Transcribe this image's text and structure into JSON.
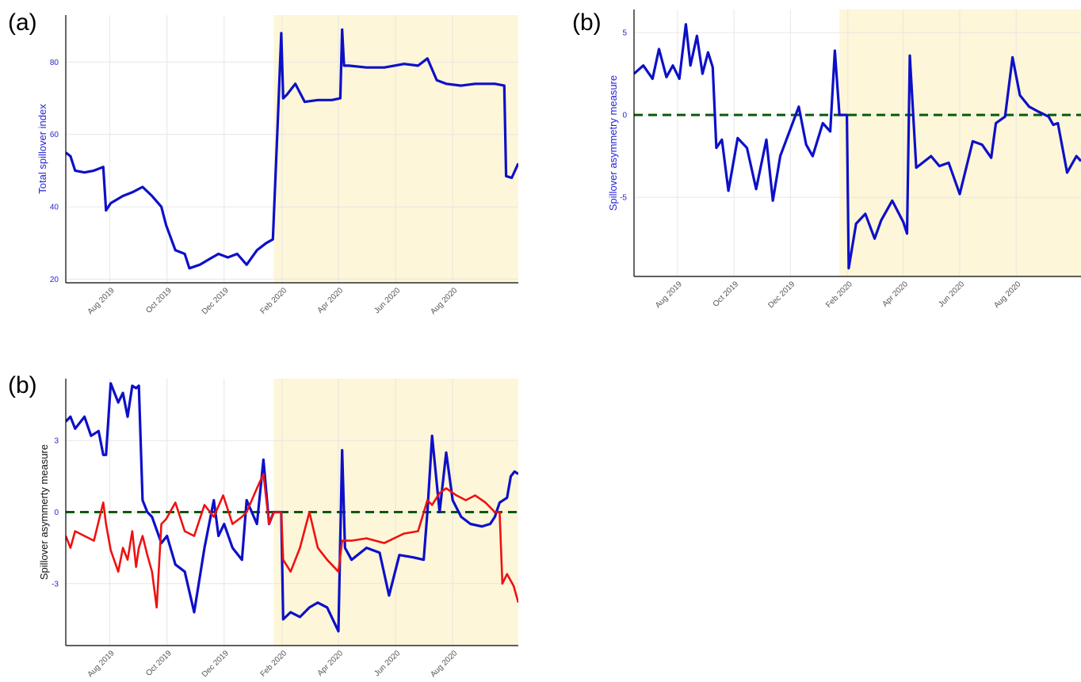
{
  "colors": {
    "shade": "#fdf6d8",
    "grid": "#e6e6e6",
    "axis": "#000000",
    "blue": "#0d10c8",
    "red": "#ee1111",
    "zero_line": "#0b5a0b",
    "blue_tick_text": "#2424d6",
    "x_tick_text": "#555555",
    "y_label_black": "#111111"
  },
  "chart_data": [
    {
      "panel_label": "(a)",
      "type": "line",
      "ylabel": "Total spillover index",
      "ylim": [
        19,
        93
      ],
      "yticks": [
        20,
        40,
        60,
        80
      ],
      "y_label_color": "blue",
      "xlim": [
        "2019-06-15",
        "2020-10-10"
      ],
      "x_ticks": [
        "Aug 2019",
        "Oct 2019",
        "Dec 2019",
        "Feb 2020",
        "Apr 2020",
        "Jun 2020",
        "Aug 2020"
      ],
      "shaded_x_start": "2020-01-23",
      "reference_line": null,
      "series": [
        {
          "color": "blue",
          "x": [
            "2019-06-15",
            "2019-06-20",
            "2019-06-25",
            "2019-07-05",
            "2019-07-15",
            "2019-07-25",
            "2019-07-28",
            "2019-08-02",
            "2019-08-15",
            "2019-08-25",
            "2019-09-05",
            "2019-09-15",
            "2019-09-25",
            "2019-09-30",
            "2019-10-10",
            "2019-10-20",
            "2019-10-25",
            "2019-11-05",
            "2019-11-15",
            "2019-11-25",
            "2019-12-05",
            "2019-12-15",
            "2019-12-25",
            "2020-01-05",
            "2020-01-15",
            "2020-01-22",
            "2020-01-27",
            "2020-01-31",
            "2020-02-02",
            "2020-02-06",
            "2020-02-15",
            "2020-02-25",
            "2020-03-10",
            "2020-03-25",
            "2020-04-03",
            "2020-04-05",
            "2020-04-07",
            "2020-04-12",
            "2020-05-01",
            "2020-05-20",
            "2020-06-10",
            "2020-06-25",
            "2020-07-05",
            "2020-07-15",
            "2020-07-25",
            "2020-08-10",
            "2020-08-25",
            "2020-09-15",
            "2020-09-25",
            "2020-09-27",
            "2020-10-03",
            "2020-10-10"
          ],
          "y": [
            55,
            54,
            50,
            49.5,
            50,
            51,
            39,
            41,
            43,
            44,
            45.5,
            43,
            40,
            35,
            28,
            27,
            23,
            24,
            25.5,
            27,
            26,
            27,
            24,
            28,
            30,
            31,
            62,
            88,
            70,
            71,
            74,
            69,
            69.5,
            69.5,
            70,
            89,
            79,
            79,
            78.5,
            78.5,
            79.5,
            79,
            81,
            75,
            74,
            73.5,
            74,
            74,
            73.5,
            48.5,
            48,
            52
          ]
        }
      ]
    },
    {
      "panel_label": "(b)",
      "type": "line",
      "ylabel": "Spillover asymmetry measure",
      "ylim": [
        -9.8,
        6.4
      ],
      "yticks": [
        -5,
        0,
        5
      ],
      "y_label_color": "blue",
      "xlim": [
        "2019-06-15",
        "2020-10-10"
      ],
      "x_ticks": [
        "Aug 2019",
        "Oct 2019",
        "Dec 2019",
        "Feb 2020",
        "Apr 2020",
        "Jun 2020",
        "Aug 2020"
      ],
      "shaded_x_start": "2020-01-23",
      "reference_line": 0,
      "series": [
        {
          "color": "blue",
          "x": [
            "2019-06-15",
            "2019-06-25",
            "2019-07-05",
            "2019-07-12",
            "2019-07-20",
            "2019-07-27",
            "2019-08-03",
            "2019-08-10",
            "2019-08-15",
            "2019-08-22",
            "2019-08-28",
            "2019-09-03",
            "2019-09-08",
            "2019-09-12",
            "2019-09-18",
            "2019-09-25",
            "2019-10-05",
            "2019-10-15",
            "2019-10-25",
            "2019-11-05",
            "2019-11-12",
            "2019-11-20",
            "2019-11-30",
            "2019-12-10",
            "2019-12-18",
            "2019-12-25",
            "2020-01-05",
            "2020-01-13",
            "2020-01-18",
            "2020-01-23",
            "2020-01-31",
            "2020-02-02",
            "2020-02-10",
            "2020-02-20",
            "2020-03-01",
            "2020-03-08",
            "2020-03-20",
            "2020-04-01",
            "2020-04-05",
            "2020-04-08",
            "2020-04-15",
            "2020-05-01",
            "2020-05-10",
            "2020-05-20",
            "2020-06-01",
            "2020-06-15",
            "2020-06-25",
            "2020-07-05",
            "2020-07-10",
            "2020-07-20",
            "2020-07-28",
            "2020-08-05",
            "2020-08-15",
            "2020-08-25",
            "2020-09-05",
            "2020-09-10",
            "2020-09-15",
            "2020-09-25",
            "2020-10-05",
            "2020-10-10"
          ],
          "y": [
            2.5,
            3.0,
            2.2,
            4.0,
            2.3,
            3.0,
            2.2,
            5.5,
            3.0,
            4.8,
            2.5,
            3.8,
            2.9,
            -2.0,
            -1.5,
            -4.6,
            -1.4,
            -2.0,
            -4.5,
            -1.5,
            -5.2,
            -2.5,
            -1.0,
            0.5,
            -1.8,
            -2.5,
            -0.5,
            -1.0,
            3.9,
            0,
            0,
            -9.3,
            -6.6,
            -6.0,
            -7.5,
            -6.4,
            -5.2,
            -6.5,
            -7.2,
            3.6,
            -3.2,
            -2.5,
            -3.1,
            -2.9,
            -4.8,
            -1.6,
            -1.8,
            -2.6,
            -0.5,
            -0.1,
            3.5,
            1.2,
            0.5,
            0.2,
            -0.1,
            -0.6,
            -0.5,
            -3.5,
            -2.5,
            -2.8
          ]
        }
      ]
    },
    {
      "panel_label": "(b)",
      "type": "line",
      "ylabel": "Spillover asymmerty measure",
      "ylim": [
        -5.6,
        5.6
      ],
      "yticks": [
        -3,
        0,
        3
      ],
      "y_label_color": "black",
      "xlim": [
        "2019-06-15",
        "2020-10-10"
      ],
      "x_ticks": [
        "Aug 2019",
        "Oct 2019",
        "Dec 2019",
        "Feb 2020",
        "Apr 2020",
        "Jun 2020",
        "Aug 2020"
      ],
      "shaded_x_start": "2020-01-23",
      "reference_line": 0,
      "series": [
        {
          "color": "blue",
          "x": [
            "2019-06-15",
            "2019-06-20",
            "2019-06-25",
            "2019-07-05",
            "2019-07-12",
            "2019-07-20",
            "2019-07-25",
            "2019-07-28",
            "2019-08-02",
            "2019-08-10",
            "2019-08-15",
            "2019-08-20",
            "2019-08-25",
            "2019-08-29",
            "2019-09-01",
            "2019-09-05",
            "2019-09-10",
            "2019-09-15",
            "2019-09-25",
            "2019-10-01",
            "2019-10-10",
            "2019-10-20",
            "2019-10-30",
            "2019-11-10",
            "2019-11-20",
            "2019-11-25",
            "2019-12-01",
            "2019-12-10",
            "2019-12-20",
            "2019-12-25",
            "2020-01-05",
            "2020-01-12",
            "2020-01-18",
            "2020-01-23",
            "2020-01-31",
            "2020-02-02",
            "2020-02-10",
            "2020-02-20",
            "2020-03-01",
            "2020-03-10",
            "2020-03-20",
            "2020-04-01",
            "2020-04-05",
            "2020-04-08",
            "2020-04-15",
            "2020-05-01",
            "2020-05-15",
            "2020-05-25",
            "2020-06-05",
            "2020-06-20",
            "2020-07-01",
            "2020-07-05",
            "2020-07-10",
            "2020-07-18",
            "2020-07-25",
            "2020-08-01",
            "2020-08-10",
            "2020-08-20",
            "2020-09-01",
            "2020-09-10",
            "2020-09-15",
            "2020-09-20",
            "2020-09-28",
            "2020-10-02",
            "2020-10-06",
            "2020-10-10"
          ],
          "y": [
            3.8,
            4.0,
            3.5,
            4.0,
            3.2,
            3.4,
            2.4,
            2.4,
            5.4,
            4.6,
            5.0,
            4.0,
            5.3,
            5.2,
            5.3,
            0.5,
            0,
            -0.2,
            -1.3,
            -1.0,
            -2.2,
            -2.5,
            -4.2,
            -1.5,
            0.5,
            -1.0,
            -0.5,
            -1.5,
            -2.0,
            0.5,
            -0.5,
            2.2,
            -0.5,
            0,
            0,
            -4.5,
            -4.2,
            -4.4,
            -4.0,
            -3.8,
            -4.0,
            -5.0,
            2.6,
            -1.5,
            -2.0,
            -1.5,
            -1.7,
            -3.5,
            -1.8,
            -1.9,
            -2.0,
            0,
            3.2,
            0,
            2.5,
            0.5,
            -0.2,
            -0.5,
            -0.6,
            -0.5,
            -0.2,
            0.4,
            0.6,
            1.5,
            1.7,
            1.6
          ]
        },
        {
          "color": "red",
          "x": [
            "2019-06-15",
            "2019-06-20",
            "2019-06-25",
            "2019-07-05",
            "2019-07-15",
            "2019-07-25",
            "2019-07-28",
            "2019-08-02",
            "2019-08-10",
            "2019-08-15",
            "2019-08-20",
            "2019-08-25",
            "2019-08-29",
            "2019-09-01",
            "2019-09-05",
            "2019-09-10",
            "2019-09-15",
            "2019-09-20",
            "2019-09-25",
            "2019-09-30",
            "2019-10-10",
            "2019-10-20",
            "2019-10-30",
            "2019-11-10",
            "2019-11-20",
            "2019-11-30",
            "2019-12-10",
            "2019-12-20",
            "2019-12-25",
            "2020-01-05",
            "2020-01-12",
            "2020-01-18",
            "2020-01-23",
            "2020-01-31",
            "2020-02-02",
            "2020-02-10",
            "2020-02-20",
            "2020-03-01",
            "2020-03-10",
            "2020-03-20",
            "2020-04-01",
            "2020-04-05",
            "2020-04-15",
            "2020-05-01",
            "2020-05-20",
            "2020-06-10",
            "2020-06-25",
            "2020-07-05",
            "2020-07-10",
            "2020-07-18",
            "2020-07-25",
            "2020-08-05",
            "2020-08-15",
            "2020-08-25",
            "2020-09-05",
            "2020-09-15",
            "2020-09-20",
            "2020-09-23",
            "2020-09-28",
            "2020-10-05",
            "2020-10-10"
          ],
          "y": [
            -1.0,
            -1.5,
            -0.8,
            -1.0,
            -1.2,
            0.4,
            -0.5,
            -1.6,
            -2.5,
            -1.5,
            -2.0,
            -0.8,
            -2.3,
            -1.5,
            -1.0,
            -1.8,
            -2.5,
            -4.0,
            -0.5,
            -0.3,
            0.4,
            -0.8,
            -1.0,
            0.3,
            -0.2,
            0.7,
            -0.5,
            -0.2,
            0,
            1.0,
            1.6,
            -0.5,
            0,
            0,
            -2.0,
            -2.5,
            -1.5,
            0,
            -1.5,
            -2.0,
            -2.5,
            -1.2,
            -1.2,
            -1.1,
            -1.3,
            -0.9,
            -0.8,
            0.5,
            0.3,
            0.8,
            1.0,
            0.7,
            0.5,
            0.7,
            0.4,
            0,
            0,
            -3.0,
            -2.6,
            -3.1,
            -3.8
          ]
        }
      ]
    }
  ]
}
